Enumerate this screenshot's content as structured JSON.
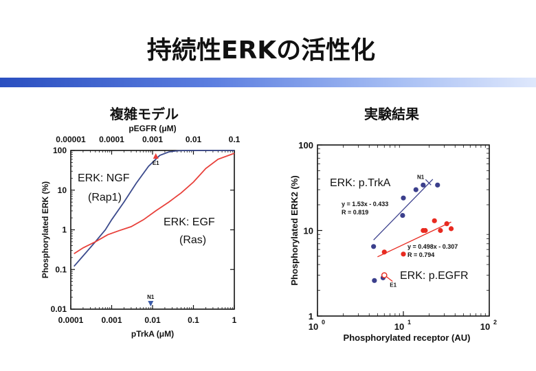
{
  "slide": {
    "title": "持続性ERKの活性化",
    "left_subtitle": "複雑モデル",
    "right_subtitle": "実験結果"
  },
  "chart_data": [
    {
      "type": "line",
      "xlabel": "pTrkA (μM)",
      "x2label": "pEGFR (μM)",
      "ylabel": "Phosphorylated ERK (%)",
      "x_scale": "log",
      "y_scale": "log",
      "xlim": [
        0.0001,
        1
      ],
      "x2lim": [
        1e-05,
        0.1
      ],
      "ylim": [
        0.01,
        100
      ],
      "x_ticks": [
        "0.0001",
        "0.001",
        "0.01",
        "0.1",
        "1"
      ],
      "x2_ticks": [
        "0.00001",
        "0.0001",
        "0.001",
        "0.01",
        "0.1"
      ],
      "y_ticks": [
        "0.01",
        "0.1",
        "1",
        "10",
        "100"
      ],
      "series": [
        {
          "color": "#3b4a8c",
          "x": [
            0.00012,
            0.0002,
            0.0004,
            0.0007,
            0.001,
            0.002,
            0.004,
            0.008,
            0.015,
            0.025,
            0.04,
            0.06,
            0.1,
            0.3,
            1
          ],
          "y": [
            0.12,
            0.22,
            0.5,
            1.0,
            1.8,
            5.0,
            15,
            40,
            75,
            92,
            98,
            99.5,
            100,
            100,
            100
          ]
        },
        {
          "color": "#e8403a",
          "x": [
            0.00012,
            0.0002,
            0.0004,
            0.0008,
            0.0015,
            0.003,
            0.006,
            0.012,
            0.025,
            0.05,
            0.1,
            0.2,
            0.4,
            1
          ],
          "y": [
            0.25,
            0.35,
            0.5,
            0.75,
            0.95,
            1.2,
            1.8,
            3.0,
            5.0,
            8.5,
            16,
            35,
            60,
            85
          ]
        }
      ],
      "markers": [
        {
          "label": "E1",
          "x": 0.012,
          "y": 100,
          "axis": "top"
        },
        {
          "label": "N1",
          "x": 0.009,
          "y": 0.01,
          "axis": "bottom"
        }
      ],
      "annotations": [
        {
          "text": "ERK: NGF",
          "color": "#111111"
        },
        {
          "text": "(Rap1)",
          "color": "#111111"
        },
        {
          "text": "ERK: EGF",
          "color": "#111111"
        },
        {
          "text": "(Ras)",
          "color": "#111111"
        }
      ]
    },
    {
      "type": "scatter",
      "xlabel": "Phosphorylated receptor (AU)",
      "ylabel": "Phosphorylated ERK2 (%)",
      "x_scale": "log",
      "y_scale": "log",
      "xlim": [
        1,
        100
      ],
      "ylim": [
        1,
        100
      ],
      "x_ticks": [
        "10",
        "10",
        "10"
      ],
      "x_tick_exponents": [
        "0",
        "1",
        "2"
      ],
      "y_ticks": [
        "1",
        "10",
        "100"
      ],
      "series": [
        {
          "color": "#3b3f8c",
          "x": [
            4.5,
            9.8,
            10,
            14,
            17,
            25
          ],
          "y": [
            6.5,
            15,
            24,
            30,
            34,
            34
          ],
          "fit": {
            "equation": "y = 1.53x - 0.433",
            "r": "R = 0.819",
            "x_range": [
              4.5,
              22
            ]
          }
        },
        {
          "color": "#e82a20",
          "x": [
            6,
            10,
            17,
            23,
            27,
            32,
            36,
            18
          ],
          "y": [
            5.6,
            5.3,
            10,
            13,
            10,
            12,
            10.5,
            10
          ],
          "fit": {
            "equation": "y = 0.498x - 0.307",
            "r": "R = 0.794",
            "x_range": [
              5,
              36
            ]
          }
        },
        {
          "color": "#3b3f8c",
          "x": [
            4.6,
            5.8
          ],
          "y": [
            2.6,
            2.8
          ]
        }
      ],
      "markers": [
        {
          "label": "N1",
          "x": 21,
          "y": 34
        },
        {
          "label": "E1",
          "x": 6,
          "y": 3.0
        }
      ],
      "annotations": [
        {
          "text": "ERK: p.TrkA",
          "color": "#111111"
        },
        {
          "text": "ERK: p.EGFR",
          "color": "#111111"
        }
      ]
    }
  ]
}
